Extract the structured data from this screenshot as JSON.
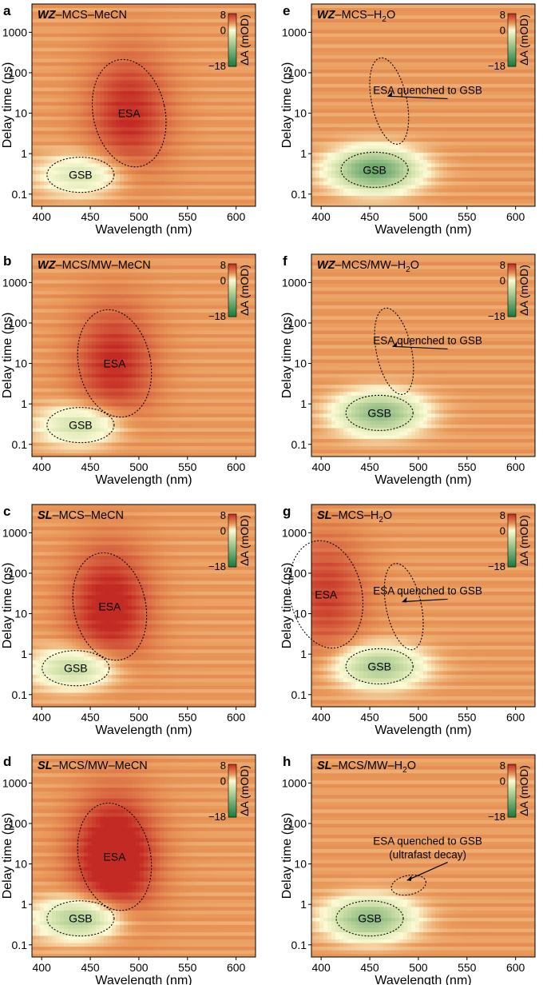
{
  "figure": {
    "x_axis_label": "Wavelength (nm)",
    "y_axis_label": "Delay time (ps)",
    "x_ticks": [
      "400",
      "450",
      "500",
      "550",
      "600"
    ],
    "y_ticks": [
      "0.1",
      "1",
      "10",
      "100",
      "1000"
    ],
    "colorbar": {
      "max_label": "8",
      "mid_label": "0",
      "min_label": "−18",
      "label": "ΔA (mOD)"
    },
    "colors": {
      "positive": "#c42a24",
      "background": "#e99a5a",
      "zero": "#fdfbd6",
      "negative": "#1a7a3e"
    }
  },
  "chart_data": [
    {
      "type": "heatmap",
      "panel": "a",
      "italic_prefix": "WZ",
      "title_rest": "–MCS–MeCN",
      "x_range_nm": [
        390,
        620
      ],
      "y_range_ps": [
        0.05,
        5000
      ],
      "y_scale": "log",
      "color_range_mOD": [
        -18,
        8
      ],
      "background_mOD": 3,
      "features": [
        {
          "label": "ESA",
          "type": "ESA",
          "center_nm": 490,
          "center_ps": 10,
          "amplitude_mOD": 5
        },
        {
          "label": "GSB",
          "type": "GSB",
          "center_nm": 440,
          "center_ps": 0.3,
          "amplitude_mOD": -6
        }
      ],
      "annotations": []
    },
    {
      "type": "heatmap",
      "panel": "b",
      "italic_prefix": "WZ",
      "title_rest": "–MCS/MW–MeCN",
      "x_range_nm": [
        390,
        620
      ],
      "y_range_ps": [
        0.05,
        5000
      ],
      "y_scale": "log",
      "color_range_mOD": [
        -18,
        8
      ],
      "background_mOD": 3,
      "features": [
        {
          "label": "ESA",
          "type": "ESA",
          "center_nm": 475,
          "center_ps": 10,
          "amplitude_mOD": 5
        },
        {
          "label": "GSB",
          "type": "GSB",
          "center_nm": 440,
          "center_ps": 0.3,
          "amplitude_mOD": -7
        }
      ],
      "annotations": []
    },
    {
      "type": "heatmap",
      "panel": "c",
      "italic_prefix": "SL",
      "title_rest": "–MCS–MeCN",
      "x_range_nm": [
        390,
        620
      ],
      "y_range_ps": [
        0.05,
        5000
      ],
      "y_scale": "log",
      "color_range_mOD": [
        -18,
        8
      ],
      "background_mOD": 3,
      "features": [
        {
          "label": "ESA",
          "type": "ESA",
          "center_nm": 470,
          "center_ps": 15,
          "amplitude_mOD": 6
        },
        {
          "label": "GSB",
          "type": "GSB",
          "center_nm": 435,
          "center_ps": 0.45,
          "amplitude_mOD": -8
        }
      ],
      "annotations": []
    },
    {
      "type": "heatmap",
      "panel": "d",
      "italic_prefix": "SL",
      "title_rest": "–MCS/MW–MeCN",
      "x_range_nm": [
        390,
        620
      ],
      "y_range_ps": [
        0.05,
        5000
      ],
      "y_scale": "log",
      "color_range_mOD": [
        -18,
        8
      ],
      "background_mOD": 3,
      "features": [
        {
          "label": "ESA",
          "type": "ESA",
          "center_nm": 475,
          "center_ps": 15,
          "amplitude_mOD": 8
        },
        {
          "label": "GSB",
          "type": "GSB",
          "center_nm": 440,
          "center_ps": 0.45,
          "amplitude_mOD": -10
        }
      ],
      "annotations": []
    },
    {
      "type": "heatmap",
      "panel": "e",
      "italic_prefix": "WZ",
      "title_rest": "–MCS–H",
      "subscript": "2",
      "title_tail": "O",
      "x_range_nm": [
        390,
        620
      ],
      "y_range_ps": [
        0.05,
        5000
      ],
      "y_scale": "log",
      "color_range_mOD": [
        -18,
        8
      ],
      "background_mOD": 3,
      "features": [
        {
          "label": "GSB",
          "type": "GSB",
          "center_nm": 455,
          "center_ps": 0.4,
          "amplitude_mOD": -15
        }
      ],
      "annotations": [
        {
          "text": "ESA quenched to GSB",
          "sub": "",
          "region": "quenched ESA",
          "center_nm": 470,
          "center_ps": 20
        }
      ]
    },
    {
      "type": "heatmap",
      "panel": "f",
      "italic_prefix": "WZ",
      "title_rest": "–MCS/MW–H",
      "subscript": "2",
      "title_tail": "O",
      "x_range_nm": [
        390,
        620
      ],
      "y_range_ps": [
        0.05,
        5000
      ],
      "y_scale": "log",
      "color_range_mOD": [
        -18,
        8
      ],
      "background_mOD": 3,
      "features": [
        {
          "label": "GSB",
          "type": "GSB",
          "center_nm": 460,
          "center_ps": 0.6,
          "amplitude_mOD": -12
        }
      ],
      "annotations": [
        {
          "text": "ESA quenched to GSB",
          "sub": "",
          "region": "quenched ESA",
          "center_nm": 475,
          "center_ps": 20
        }
      ]
    },
    {
      "type": "heatmap",
      "panel": "g",
      "italic_prefix": "SL",
      "title_rest": "–MCS–H",
      "subscript": "2",
      "title_tail": "O",
      "x_range_nm": [
        390,
        620
      ],
      "y_range_ps": [
        0.05,
        5000
      ],
      "y_scale": "log",
      "color_range_mOD": [
        -18,
        8
      ],
      "background_mOD": 3,
      "features": [
        {
          "label": "ESA",
          "type": "ESA",
          "center_nm": 405,
          "center_ps": 30,
          "amplitude_mOD": 4
        },
        {
          "label": "GSB",
          "type": "GSB",
          "center_nm": 460,
          "center_ps": 0.5,
          "amplitude_mOD": -10
        }
      ],
      "annotations": [
        {
          "text": "ESA quenched to GSB",
          "sub": "",
          "region": "quenched ESA",
          "center_nm": 485,
          "center_ps": 15
        }
      ]
    },
    {
      "type": "heatmap",
      "panel": "h",
      "italic_prefix": "SL",
      "title_rest": "–MCS/MW–H",
      "subscript": "2",
      "title_tail": "O",
      "x_range_nm": [
        390,
        620
      ],
      "y_range_ps": [
        0.05,
        5000
      ],
      "y_scale": "log",
      "color_range_mOD": [
        -18,
        8
      ],
      "background_mOD": 3,
      "features": [
        {
          "label": "GSB",
          "type": "GSB",
          "center_nm": 450,
          "center_ps": 0.45,
          "amplitude_mOD": -12
        }
      ],
      "annotations": [
        {
          "text": "ESA quenched to GSB",
          "sub": "(ultrafast decay)",
          "region": "quenched ESA",
          "center_nm": 490,
          "center_ps": 3
        }
      ]
    }
  ]
}
